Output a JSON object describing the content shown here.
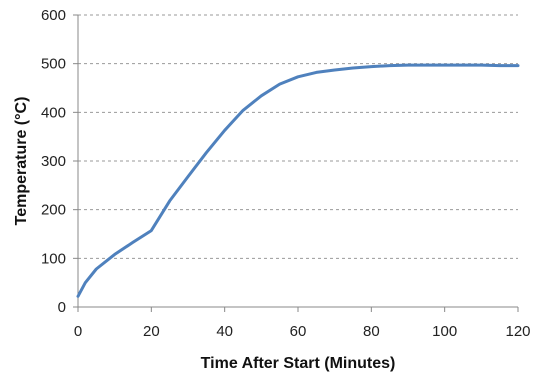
{
  "chart_data": {
    "type": "line",
    "title": "",
    "xlabel": "Time After Start (Minutes)",
    "ylabel": "Temperature (°C)",
    "xlim": [
      0,
      120
    ],
    "ylim": [
      0,
      600
    ],
    "x_ticks": [
      "0",
      "20",
      "40",
      "60",
      "80",
      "100",
      "120"
    ],
    "y_ticks": [
      "0",
      "100",
      "200",
      "300",
      "400",
      "500",
      "600"
    ],
    "grid": "horizontal dashed",
    "legend": "none",
    "series": [
      {
        "color": "#4f81bd",
        "x": [
          0,
          2,
          5,
          10,
          15,
          20,
          25,
          30,
          35,
          40,
          45,
          50,
          55,
          60,
          65,
          70,
          75,
          80,
          85,
          90,
          95,
          100,
          105,
          110,
          115,
          120
        ],
        "y": [
          22,
          50,
          78,
          108,
          133,
          157,
          218,
          268,
          317,
          363,
          404,
          434,
          458,
          473,
          482,
          487,
          491,
          494,
          496,
          497,
          497,
          497,
          497,
          497,
          496,
          496
        ]
      }
    ]
  }
}
